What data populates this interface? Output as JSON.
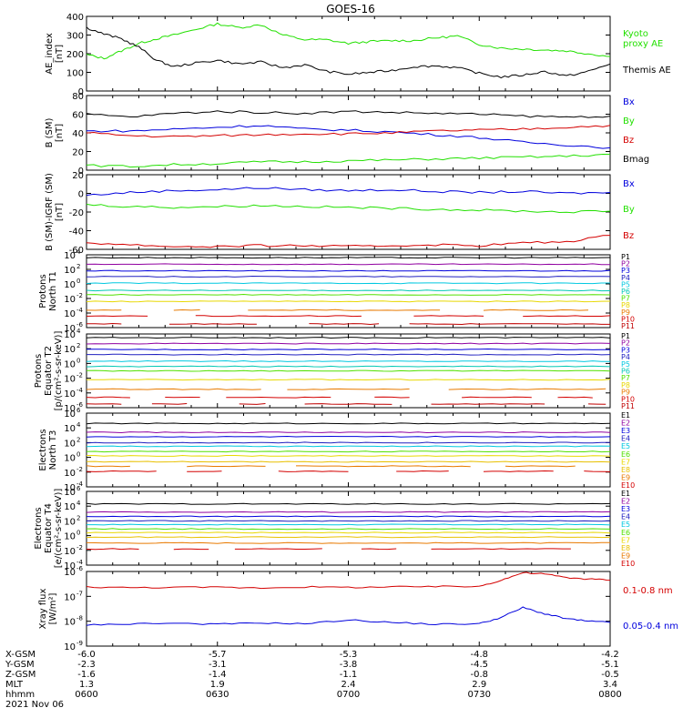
{
  "title": "GOES-16",
  "colors": {
    "black": "#000000",
    "red": "#d40000",
    "green": "#22e000",
    "blue": "#0000dd",
    "cyan": "#00c8e0",
    "teal": "#00c8b4",
    "yellow": "#e8d800",
    "gold": "#e8c000",
    "orange": "#e87a00",
    "darkred": "#c00000",
    "purple": "#9000a0",
    "navy": "#2020c0",
    "lime": "#50e000"
  },
  "footer": {
    "row_labels": [
      "X-GSM",
      "Y-GSM",
      "Z-GSM",
      "MLT",
      "hhmm"
    ],
    "columns": [
      [
        "-6.0",
        "-2.3",
        "-1.6",
        "1.3",
        "0600"
      ],
      [
        "-5.7",
        "-3.1",
        "-1.4",
        "1.9",
        "0630"
      ],
      [
        "-5.3",
        "-3.8",
        "-1.1",
        "2.4",
        "0700"
      ],
      [
        "-4.8",
        "-4.5",
        "-0.8",
        "2.9",
        "0730"
      ],
      [
        "-4.2",
        "-5.1",
        "-0.5",
        "3.4",
        "0800"
      ]
    ],
    "date": "2021 Nov 06"
  },
  "chart_data": [
    {
      "type": "line",
      "ylabel": "AE_index\n[nT]",
      "x_range": [
        "0600",
        "0800"
      ],
      "ylim": [
        0,
        400
      ],
      "yticks": [
        "0",
        "100",
        "200",
        "300",
        "400"
      ],
      "series": [
        {
          "name": "Kyoto\nproxy AE",
          "color": "#22e000",
          "x": [
            0,
            4,
            8,
            12,
            16,
            20,
            25,
            30,
            35,
            40,
            45,
            50,
            55,
            60,
            65,
            70,
            75,
            80,
            85,
            90,
            95,
            100,
            105,
            110,
            115,
            120
          ],
          "y": [
            195,
            175,
            215,
            255,
            280,
            300,
            330,
            360,
            340,
            355,
            300,
            275,
            275,
            255,
            265,
            270,
            270,
            285,
            295,
            250,
            230,
            225,
            220,
            215,
            200,
            185
          ]
        },
        {
          "name": "Themis AE",
          "color": "#000000",
          "x": [
            0,
            4,
            8,
            12,
            16,
            20,
            25,
            30,
            35,
            40,
            45,
            50,
            55,
            60,
            65,
            70,
            75,
            80,
            85,
            90,
            95,
            100,
            105,
            110,
            115,
            120
          ],
          "y": [
            340,
            305,
            280,
            235,
            165,
            130,
            150,
            165,
            145,
            155,
            125,
            140,
            105,
            90,
            100,
            110,
            130,
            135,
            125,
            95,
            75,
            85,
            105,
            80,
            105,
            145
          ]
        }
      ]
    },
    {
      "type": "line",
      "ylabel": "B (SM)\n[nT]",
      "x_range": [
        "0600",
        "0800"
      ],
      "ylim": [
        0,
        80
      ],
      "yticks": [
        "0",
        "20",
        "40",
        "60",
        "80"
      ],
      "series": [
        {
          "name": "Bx",
          "color": "#0000dd",
          "x": [
            0,
            10,
            20,
            30,
            40,
            50,
            60,
            70,
            80,
            90,
            100,
            110,
            120
          ],
          "y": [
            42,
            42,
            44,
            46,
            48,
            44,
            43,
            41,
            38,
            35,
            30,
            27,
            24
          ]
        },
        {
          "name": "By",
          "color": "#22e000",
          "x": [
            0,
            10,
            20,
            30,
            40,
            50,
            60,
            70,
            80,
            90,
            100,
            110,
            120
          ],
          "y": [
            5,
            4,
            6,
            7,
            9,
            9,
            10,
            11,
            12,
            13,
            14,
            15,
            17
          ]
        },
        {
          "name": "Bz",
          "color": "#d40000",
          "x": [
            0,
            10,
            20,
            30,
            40,
            50,
            60,
            70,
            80,
            90,
            100,
            110,
            120
          ],
          "y": [
            40,
            37,
            36,
            37,
            38,
            39,
            39,
            40,
            42,
            43,
            44,
            46,
            48
          ]
        },
        {
          "name": "Bmag",
          "color": "#000000",
          "x": [
            0,
            10,
            20,
            30,
            40,
            50,
            60,
            70,
            80,
            90,
            100,
            110,
            120
          ],
          "y": [
            60,
            57,
            61,
            63,
            62,
            61,
            63,
            62,
            61,
            60,
            58,
            57,
            58
          ]
        }
      ]
    },
    {
      "type": "line",
      "ylabel": "B (SM)-IGRF (SM)\n[nT]",
      "x_range": [
        "0600",
        "0800"
      ],
      "ylim": [
        -60,
        20
      ],
      "yticks": [
        "-60",
        "-40",
        "-20",
        "0",
        "20"
      ],
      "series": [
        {
          "name": "Bx",
          "color": "#0000dd",
          "x": [
            0,
            10,
            20,
            30,
            40,
            50,
            60,
            70,
            80,
            90,
            100,
            110,
            120
          ],
          "y": [
            -2,
            1,
            3,
            4,
            6,
            4,
            3,
            4,
            2,
            1,
            2,
            0,
            1
          ]
        },
        {
          "name": "By",
          "color": "#22e000",
          "x": [
            0,
            10,
            20,
            30,
            40,
            50,
            60,
            70,
            80,
            90,
            100,
            110,
            120
          ],
          "y": [
            -12,
            -14,
            -15,
            -14,
            -13,
            -14,
            -15,
            -16,
            -17,
            -18,
            -19,
            -20,
            -19
          ]
        },
        {
          "name": "Bz",
          "color": "#d40000",
          "x": [
            0,
            10,
            20,
            30,
            40,
            50,
            60,
            70,
            80,
            90,
            100,
            110,
            120
          ],
          "y": [
            -53,
            -55,
            -57,
            -57,
            -56,
            -56,
            -57,
            -56,
            -55,
            -56,
            -53,
            -52,
            -45
          ]
        }
      ]
    },
    {
      "type": "line",
      "yscale": "log",
      "ylabel": "Protons\nNorth T1",
      "x_range": [
        "0600",
        "0800"
      ],
      "ylim_exp": [
        -6,
        4
      ],
      "ytick_exps": [
        -6,
        -4,
        -2,
        0,
        2,
        4
      ],
      "series": [
        {
          "name": "P1",
          "color": "#000000",
          "log_level": 3.6
        },
        {
          "name": "P2",
          "color": "#9000a0",
          "log_level": 2.7
        },
        {
          "name": "P3",
          "color": "#0000dd",
          "log_level": 1.8
        },
        {
          "name": "P4",
          "color": "#2020c0",
          "log_level": 1.0
        },
        {
          "name": "P5",
          "color": "#00c8e0",
          "log_level": 0.1
        },
        {
          "name": "P6",
          "color": "#00c8b4",
          "log_level": -0.9
        },
        {
          "name": "P7",
          "color": "#50e000",
          "log_level": -1.5
        },
        {
          "name": "P8",
          "color": "#e8d800",
          "log_level": -2.4
        },
        {
          "name": "P9",
          "color": "#e87a00",
          "log_level": -3.6
        },
        {
          "name": "P10",
          "color": "#d40000",
          "log_level": -4.4
        },
        {
          "name": "P11",
          "color": "#c00000",
          "log_level": -5.5
        }
      ]
    },
    {
      "type": "line",
      "yscale": "log",
      "ylabel": "Protons\nEquator T2\n[p/(cm²-s-sr-keV)]",
      "x_range": [
        "0600",
        "0800"
      ],
      "ylim_exp": [
        -6,
        4
      ],
      "ytick_exps": [
        -6,
        -4,
        -2,
        0,
        2,
        4
      ],
      "series": [
        {
          "name": "P1",
          "color": "#000000",
          "log_level": 3.5
        },
        {
          "name": "P2",
          "color": "#9000a0",
          "log_level": 2.7
        },
        {
          "name": "P3",
          "color": "#0000dd",
          "log_level": 1.9
        },
        {
          "name": "P4",
          "color": "#2020c0",
          "log_level": 1.2
        },
        {
          "name": "P5",
          "color": "#00c8e0",
          "log_level": 0.3
        },
        {
          "name": "P6",
          "color": "#00c8b4",
          "log_level": -0.4
        },
        {
          "name": "P7",
          "color": "#50e000",
          "log_level": -1.0
        },
        {
          "name": "P8",
          "color": "#e8d800",
          "log_level": -2.2
        },
        {
          "name": "P9",
          "color": "#e87a00",
          "log_level": -3.5
        },
        {
          "name": "P10",
          "color": "#d40000",
          "log_level": -4.6
        },
        {
          "name": "P11",
          "color": "#c00000",
          "log_level": -5.5
        }
      ]
    },
    {
      "type": "line",
      "yscale": "log",
      "ylabel": "Electrons\nNorth T3",
      "x_range": [
        "0600",
        "0800"
      ],
      "ylim_exp": [
        -4,
        6
      ],
      "ytick_exps": [
        -4,
        -2,
        0,
        2,
        4,
        6
      ],
      "series": [
        {
          "name": "E1",
          "color": "#000000",
          "log_level": 4.6
        },
        {
          "name": "E2",
          "color": "#9000a0",
          "log_level": 3.4
        },
        {
          "name": "E3",
          "color": "#0000dd",
          "log_level": 2.8
        },
        {
          "name": "E4",
          "color": "#2020c0",
          "log_level": 2.0
        },
        {
          "name": "E5",
          "color": "#00c8e0",
          "log_level": 1.5
        },
        {
          "name": "E6",
          "color": "#50e000",
          "log_level": 0.8
        },
        {
          "name": "E7",
          "color": "#e8d800",
          "log_level": 0.2
        },
        {
          "name": "E8",
          "color": "#e8c000",
          "log_level": -0.6
        },
        {
          "name": "E9",
          "color": "#e87a00",
          "log_level": -1.2
        },
        {
          "name": "E10",
          "color": "#d40000",
          "log_level": -1.9
        }
      ]
    },
    {
      "type": "line",
      "yscale": "log",
      "ylabel": "Electrons\nEquator T4\n[e/(cm²-s-sr-keV)]",
      "x_range": [
        "0600",
        "0800"
      ],
      "ylim_exp": [
        -4,
        6
      ],
      "ytick_exps": [
        -4,
        -2,
        0,
        2,
        4,
        6
      ],
      "series": [
        {
          "name": "E1",
          "color": "#000000",
          "log_level": 4.3
        },
        {
          "name": "E2",
          "color": "#9000a0",
          "log_level": 3.2
        },
        {
          "name": "E3",
          "color": "#0000dd",
          "log_level": 2.6
        },
        {
          "name": "E4",
          "color": "#2020c0",
          "log_level": 2.0
        },
        {
          "name": "E5",
          "color": "#00c8e0",
          "log_level": 1.5
        },
        {
          "name": "E6",
          "color": "#50e000",
          "log_level": 0.9
        },
        {
          "name": "E7",
          "color": "#e8d800",
          "log_level": 0.4
        },
        {
          "name": "E8",
          "color": "#e8c000",
          "log_level": -0.2
        },
        {
          "name": "E9",
          "color": "#e87a00",
          "log_level": -1.0
        },
        {
          "name": "E10",
          "color": "#d40000",
          "log_level": -1.8
        }
      ]
    },
    {
      "type": "line",
      "yscale": "log",
      "ylabel": "Xray flux\n[W/m²]",
      "x_range": [
        "0600",
        "0800"
      ],
      "ylim_exp": [
        -9,
        -6
      ],
      "ytick_exps": [
        -9,
        -8,
        -7,
        -6
      ],
      "series": [
        {
          "name": "0.1-0.8 nm",
          "color": "#d40000",
          "x": [
            0,
            10,
            20,
            30,
            40,
            50,
            60,
            70,
            80,
            90,
            95,
            100,
            105,
            110,
            115,
            120
          ],
          "y": [
            -6.62,
            -6.65,
            -6.64,
            -6.63,
            -6.66,
            -6.62,
            -6.64,
            -6.62,
            -6.61,
            -6.6,
            -6.35,
            -6.05,
            -6.1,
            -6.25,
            -6.3,
            -6.35
          ]
        },
        {
          "name": "0.05-0.4 nm",
          "color": "#0000dd",
          "x": [
            0,
            10,
            20,
            30,
            40,
            50,
            60,
            70,
            80,
            90,
            95,
            100,
            105,
            110,
            115,
            120
          ],
          "y": [
            -8.15,
            -8.1,
            -8.08,
            -8.12,
            -8.07,
            -8.1,
            -7.95,
            -8.05,
            -8.12,
            -8.1,
            -7.85,
            -7.45,
            -7.7,
            -7.9,
            -8.0,
            -8.05
          ]
        }
      ]
    }
  ]
}
